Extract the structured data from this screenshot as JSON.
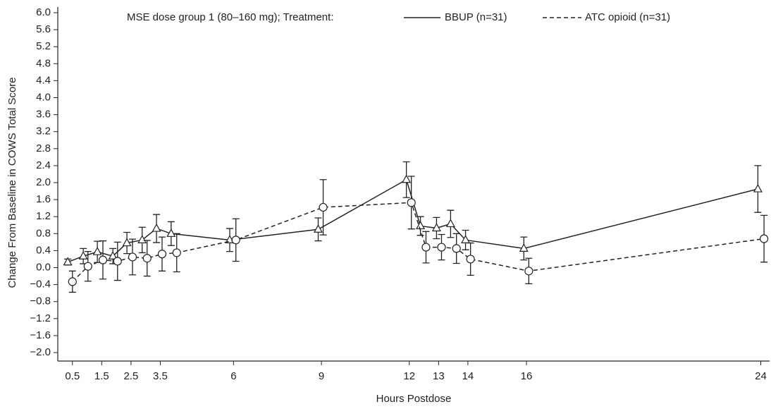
{
  "chart_data": {
    "type": "line",
    "legend_title": "MSE dose group 1 (80–160 mg); Treatment:",
    "x_label": "Hours Postdose",
    "y_label": "Change From Baseline in COWS Total Score",
    "xlim": [
      0,
      24.3
    ],
    "xticks": [
      0.5,
      1.5,
      2.5,
      3.5,
      6,
      9,
      12,
      13,
      14,
      16,
      24
    ],
    "ylim": [
      -2.0,
      6.0
    ],
    "yticks": [
      {
        "value": -2.0,
        "label": "−2.0"
      },
      {
        "value": -1.6,
        "label": "−1.6"
      },
      {
        "value": -1.2,
        "label": "−1.2"
      },
      {
        "value": -0.8,
        "label": "−0.8"
      },
      {
        "value": -0.4,
        "label": "−0.4"
      },
      {
        "value": 0,
        "label": "0.0"
      },
      {
        "value": 0.4,
        "label": "0.4"
      },
      {
        "value": 0.8,
        "label": "0.8"
      },
      {
        "value": 1.2,
        "label": "1.2"
      },
      {
        "value": 1.6,
        "label": "1.6"
      },
      {
        "value": 2.0,
        "label": "2.0"
      },
      {
        "value": 2.4,
        "label": "2.4"
      },
      {
        "value": 2.8,
        "label": "2.8"
      },
      {
        "value": 3.2,
        "label": "3.2"
      },
      {
        "value": 3.6,
        "label": "3.6"
      },
      {
        "value": 4.0,
        "label": "4.0"
      },
      {
        "value": 4.4,
        "label": "4.4"
      },
      {
        "value": 4.8,
        "label": "4.8"
      },
      {
        "value": 5.2,
        "label": "5.2"
      },
      {
        "value": 5.6,
        "label": "5.6"
      },
      {
        "value": 6.0,
        "label": "6.0"
      }
    ],
    "series": [
      {
        "name": "BBUP (n=31)",
        "color": "#222222",
        "dashed": false,
        "marker": "triangle",
        "x": [
          0.34,
          0.87,
          1.35,
          1.88,
          2.36,
          2.88,
          3.37,
          3.87,
          5.87,
          8.89,
          11.9,
          12.38,
          12.93,
          13.41,
          13.92,
          15.91,
          23.9
        ],
        "values": [
          0.13,
          0.27,
          0.37,
          0.27,
          0.58,
          0.65,
          0.92,
          0.8,
          0.65,
          0.9,
          2.07,
          0.98,
          0.93,
          1.03,
          0.65,
          0.45,
          1.85
        ],
        "errors": [
          0.07,
          0.18,
          0.25,
          0.18,
          0.25,
          0.3,
          0.33,
          0.28,
          0.27,
          0.27,
          0.42,
          0.22,
          0.25,
          0.32,
          0.23,
          0.27,
          0.55
        ]
      },
      {
        "name": "ATC opioid (n=31)",
        "color": "#222222",
        "dashed": true,
        "marker": "circle",
        "x": [
          0.5,
          1.03,
          1.54,
          2.04,
          2.55,
          3.05,
          3.56,
          4.06,
          6.08,
          9.06,
          12.07,
          12.57,
          13.1,
          13.61,
          14.09,
          16.08,
          24.11
        ],
        "values": [
          -0.33,
          0.03,
          0.18,
          0.15,
          0.25,
          0.22,
          0.32,
          0.35,
          0.65,
          1.42,
          1.53,
          0.48,
          0.48,
          0.45,
          0.2,
          -0.08,
          0.68
        ],
        "errors": [
          0.25,
          0.35,
          0.45,
          0.45,
          0.42,
          0.42,
          0.4,
          0.45,
          0.5,
          0.65,
          0.62,
          0.37,
          0.3,
          0.35,
          0.38,
          0.3,
          0.55
        ]
      }
    ]
  }
}
